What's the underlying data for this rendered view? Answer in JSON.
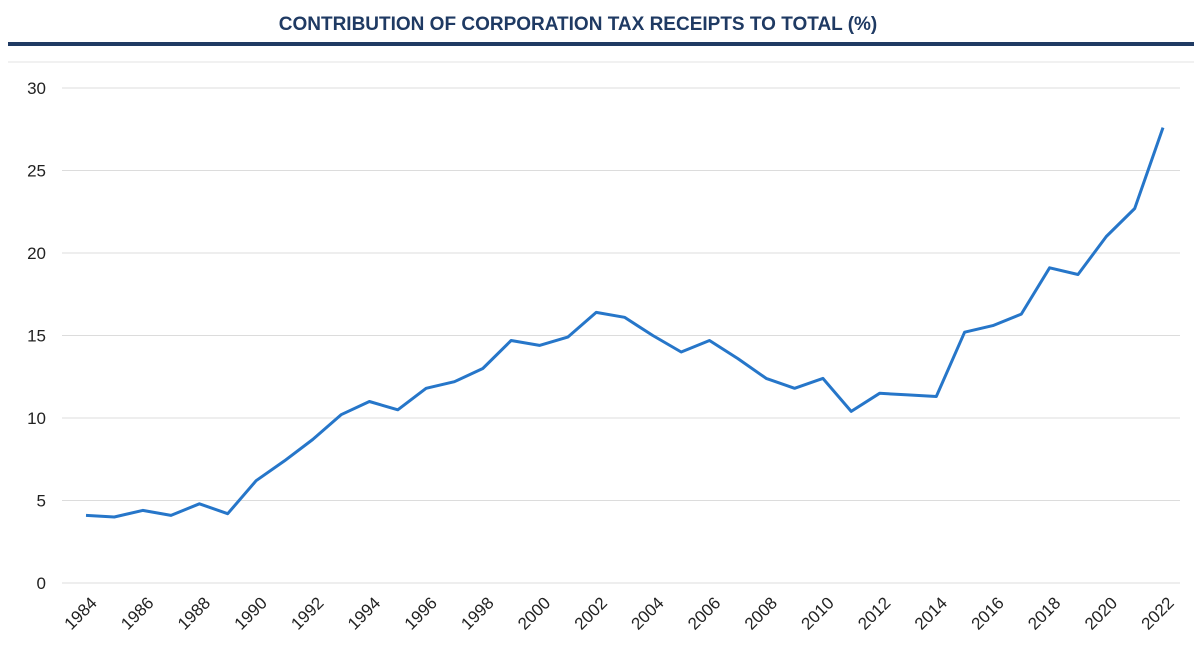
{
  "chart_data": {
    "type": "line",
    "title": "CONTRIBUTION OF CORPORATION TAX RECEIPTS TO TOTAL (%)",
    "x": [
      1984,
      1985,
      1986,
      1987,
      1988,
      1989,
      1990,
      1991,
      1992,
      1993,
      1994,
      1995,
      1996,
      1997,
      1998,
      1999,
      2000,
      2001,
      2002,
      2003,
      2004,
      2005,
      2006,
      2007,
      2008,
      2009,
      2010,
      2011,
      2012,
      2013,
      2014,
      2015,
      2016,
      2017,
      2018,
      2019,
      2020,
      2021,
      2022
    ],
    "values": [
      4.1,
      4.0,
      4.4,
      4.1,
      4.8,
      4.2,
      6.2,
      7.4,
      8.7,
      10.2,
      11.0,
      10.5,
      11.8,
      12.2,
      13.0,
      14.7,
      14.4,
      14.9,
      16.4,
      16.1,
      15.0,
      14.0,
      14.7,
      13.6,
      12.4,
      11.8,
      12.4,
      10.4,
      11.5,
      11.4,
      11.3,
      15.2,
      15.6,
      16.3,
      19.1,
      18.7,
      21.0,
      22.7,
      27.6
    ],
    "color": "#2676c9",
    "xlim": [
      1984,
      2022
    ],
    "xticks": [
      1984,
      1986,
      1988,
      1990,
      1992,
      1994,
      1996,
      1998,
      2000,
      2002,
      2004,
      2006,
      2008,
      2010,
      2012,
      2014,
      2016,
      2018,
      2020,
      2022
    ],
    "ylim": [
      0,
      30
    ],
    "yticks": [
      0,
      5,
      10,
      15,
      20,
      25,
      30
    ],
    "grid": true
  }
}
